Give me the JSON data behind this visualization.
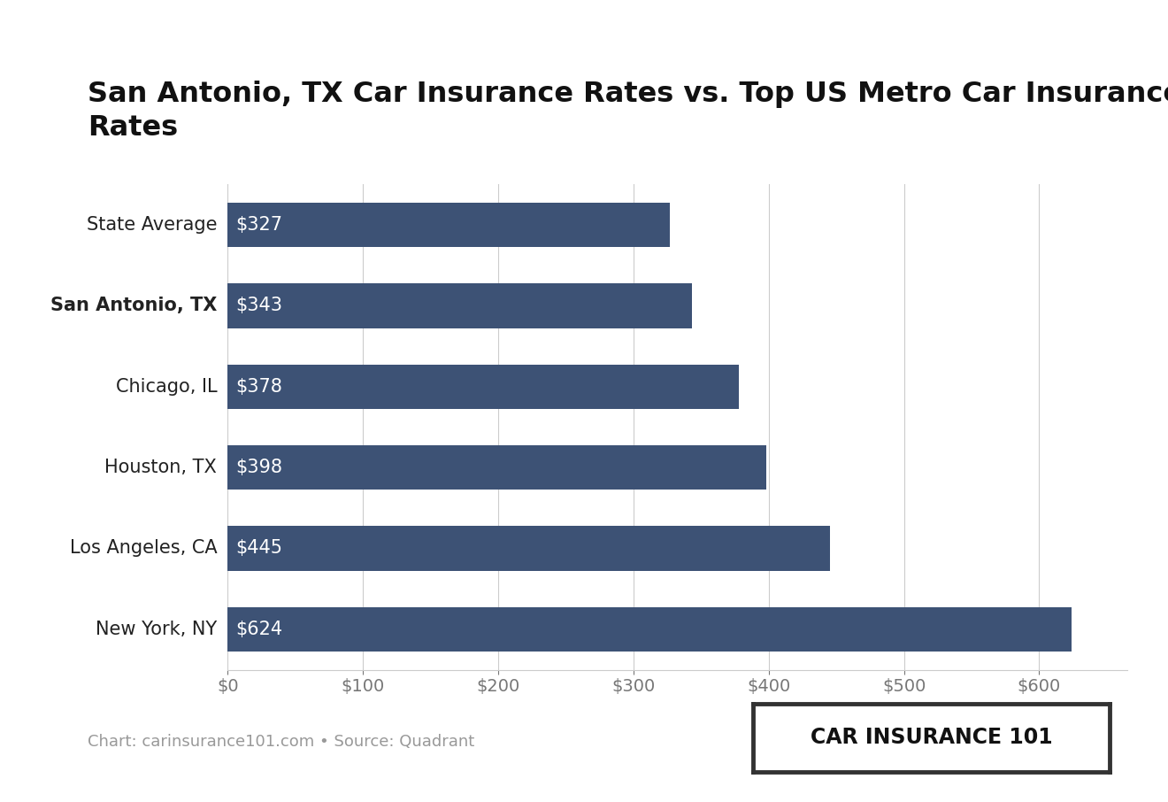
{
  "title": "San Antonio, TX Car Insurance Rates vs. Top US Metro Car Insurance\nRates",
  "categories": [
    "State Average",
    "San Antonio, TX",
    "Chicago, IL",
    "Houston, TX",
    "Los Angeles, CA",
    "New York, NY"
  ],
  "values": [
    327,
    343,
    378,
    398,
    445,
    624
  ],
  "bar_color": "#3d5275",
  "bar_labels": [
    "$327",
    "$343",
    "$378",
    "$398",
    "$445",
    "$624"
  ],
  "bold_category_index": 1,
  "xlabel_ticks": [
    0,
    100,
    200,
    300,
    400,
    500,
    600
  ],
  "xlim": [
    0,
    665
  ],
  "background_color": "#ffffff",
  "title_fontsize": 23,
  "bar_label_fontsize": 15,
  "tick_fontsize": 14,
  "ytick_fontsize": 15,
  "source_text": "Chart: carinsurance101.com • Source: Quadrant",
  "logo_text": "CAR INSURANCE 101",
  "logo_fontsize": 17,
  "source_fontsize": 13
}
